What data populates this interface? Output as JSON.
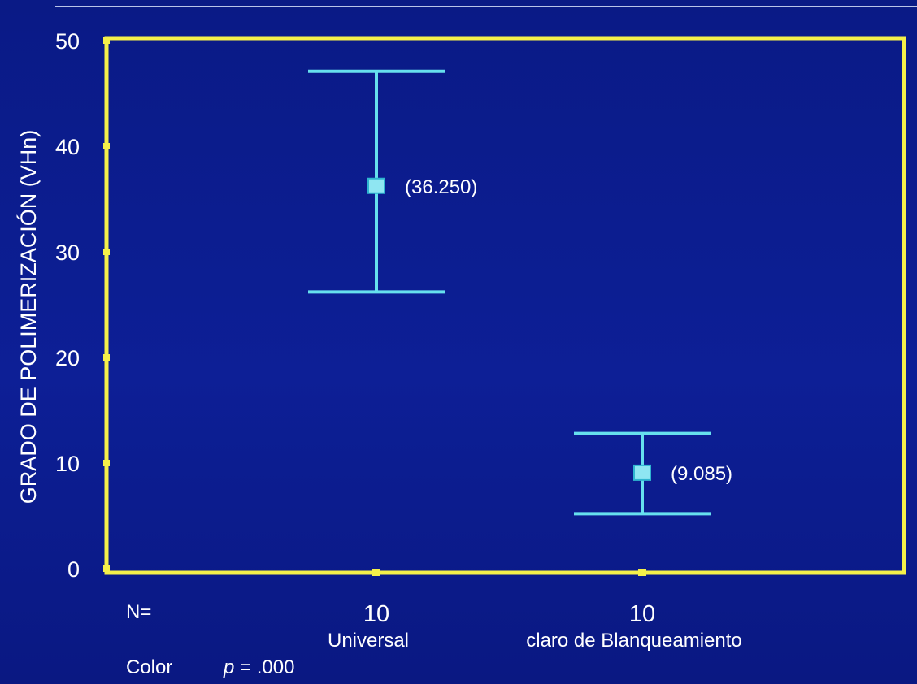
{
  "colors": {
    "background": "#0b1a8a",
    "frame": "#f5f04a",
    "errorbar": "#66e0ee",
    "marker": "#8fe6f2",
    "text": "#ffffff",
    "topline": "#b9c3e8"
  },
  "chart_data": {
    "type": "errorbar",
    "ylabel": "GRADO DE POLIMERIZACIÓN  (VHn)",
    "ylim": [
      0,
      50
    ],
    "yticks": [
      0,
      10,
      20,
      30,
      40,
      50
    ],
    "categories": [
      "Universal",
      "claro de Blanqueamiento"
    ],
    "series": [
      {
        "means": [
          36.25,
          9.085
        ],
        "lower": [
          26.2,
          5.2
        ],
        "upper": [
          47.1,
          12.8
        ],
        "data_labels": [
          "(36.250)",
          "(9.085)"
        ],
        "n": [
          "10",
          "10"
        ]
      }
    ],
    "grid": false
  },
  "footer": {
    "n_label": "N=",
    "color_label": "Color",
    "p_symbol": "p",
    "p_rest": " = .000"
  }
}
